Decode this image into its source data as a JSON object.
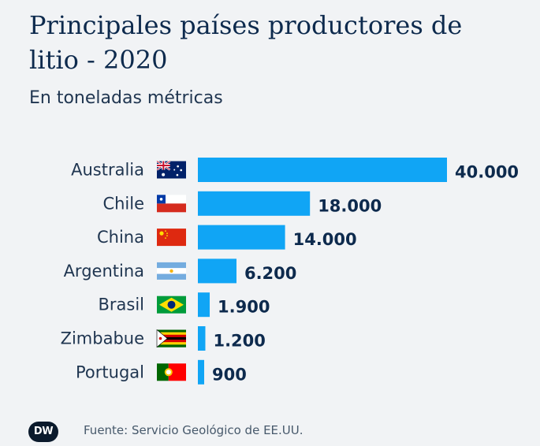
{
  "title": "Principales países productores de litio - 2020",
  "subtitle": "En toneladas métricas",
  "source": "Fuente: Servicio Geológico de EE.UU.",
  "logo_text": "DW",
  "colors": {
    "bar": "#10a5f5",
    "text": "#0d2a4d",
    "background": "#f1f3f5"
  },
  "chart_data": {
    "type": "bar",
    "orientation": "horizontal",
    "title": "Principales países productores de litio - 2020",
    "subtitle": "En toneladas métricas",
    "categories": [
      "Australia",
      "Chile",
      "China",
      "Argentina",
      "Brasil",
      "Zimbabue",
      "Portugal"
    ],
    "values": [
      40000,
      18000,
      14000,
      6200,
      1900,
      1200,
      900
    ],
    "value_labels": [
      "40.000",
      "18.000",
      "14.000",
      "6.200",
      "1.900",
      "1.200",
      "900"
    ],
    "flags": [
      "australia-flag-icon",
      "chile-flag-icon",
      "china-flag-icon",
      "argentina-flag-icon",
      "brazil-flag-icon",
      "zimbabwe-flag-icon",
      "portugal-flag-icon"
    ],
    "xlim": [
      0,
      40000
    ],
    "grid": false,
    "legend": "none"
  }
}
